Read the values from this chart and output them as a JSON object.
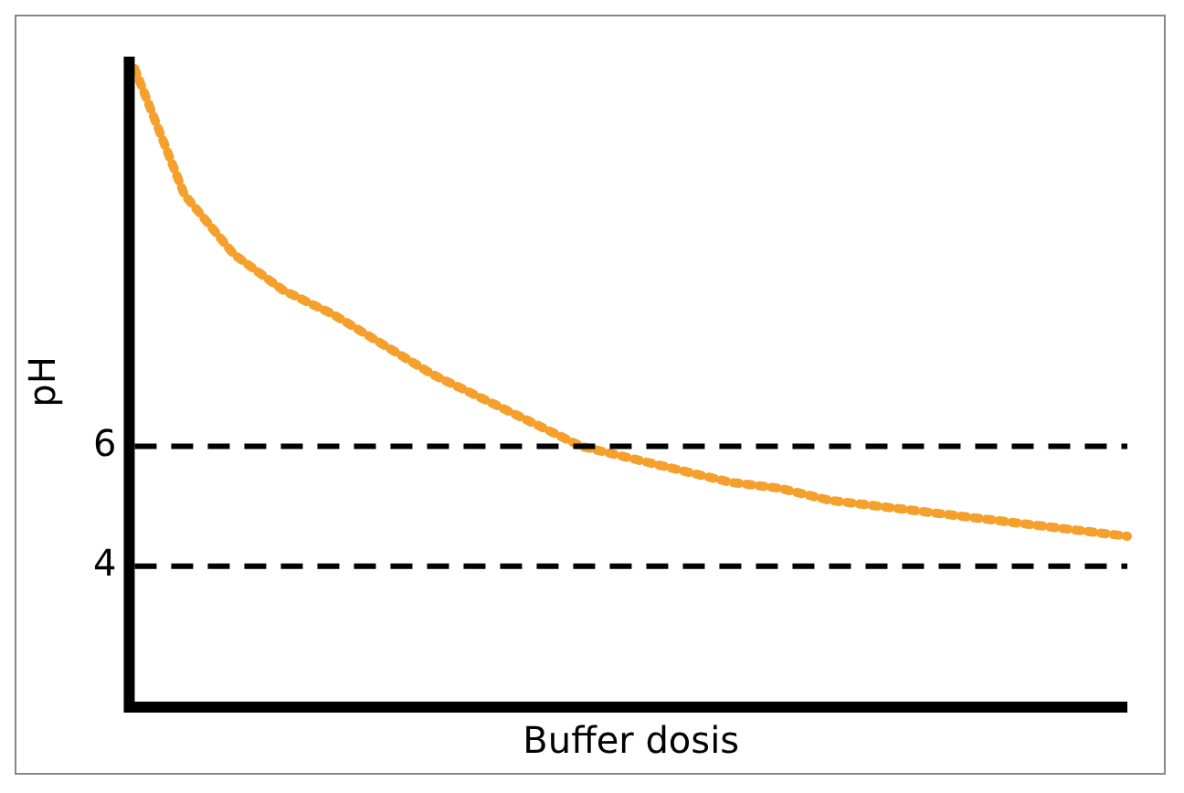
{
  "chart_data": {
    "type": "line",
    "xlabel": "Buffer dosis",
    "ylabel": "pH",
    "categories": [
      null,
      null,
      null,
      null,
      null,
      null,
      null,
      null,
      null,
      null,
      null,
      null,
      null,
      null,
      null,
      null,
      null,
      null,
      null,
      null,
      null
    ],
    "series": [
      {
        "color": "#f5a02d",
        "line_style": "dotted",
        "values": [
          12.3,
          10.2,
          9.2,
          8.6,
          8.2,
          7.7,
          7.2,
          6.8,
          6.4,
          6.0,
          5.8,
          5.6,
          5.4,
          5.3,
          5.1,
          5.0,
          4.9,
          4.8,
          4.7,
          4.6,
          4.5
        ]
      }
    ],
    "ylim": [
      1.65,
      12.5
    ],
    "yticks": [
      4,
      6
    ],
    "grid": false,
    "legend": false,
    "marker": "none",
    "tick_labels": "y",
    "ref_lines": [
      {
        "axis": "y",
        "value": 6,
        "line_style": "dashed",
        "color": "#000000"
      },
      {
        "axis": "y",
        "value": 4,
        "line_style": "dashed",
        "color": "#000000"
      }
    ]
  }
}
